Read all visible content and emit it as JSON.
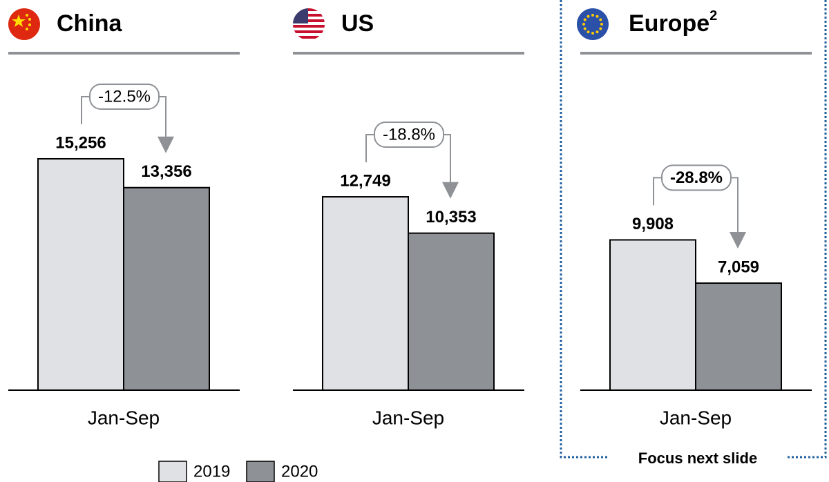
{
  "chart_data": [
    {
      "type": "bar",
      "title": "China",
      "categories": [
        "Jan-Sep"
      ],
      "series": [
        {
          "name": "2019",
          "color": "#e0e1e4",
          "values": [
            15256
          ],
          "value_labels": [
            "15,256"
          ]
        },
        {
          "name": "2020",
          "color": "#8e9196",
          "values": [
            13356
          ],
          "value_labels": [
            "13,356"
          ]
        }
      ],
      "annotation": "-12.5%"
    },
    {
      "type": "bar",
      "title": "US",
      "categories": [
        "Jan-Sep"
      ],
      "series": [
        {
          "name": "2019",
          "color": "#e0e1e4",
          "values": [
            12749
          ],
          "value_labels": [
            "12,749"
          ]
        },
        {
          "name": "2020",
          "color": "#8e9196",
          "values": [
            10353
          ],
          "value_labels": [
            "10,353"
          ]
        }
      ],
      "annotation": "-18.8%"
    },
    {
      "type": "bar",
      "title": "Europe",
      "title_note": "2",
      "categories": [
        "Jan-Sep"
      ],
      "series": [
        {
          "name": "2019",
          "color": "#e0e1e4",
          "values": [
            9908
          ],
          "value_labels": [
            "9,908"
          ]
        },
        {
          "name": "2020",
          "color": "#8e9196",
          "values": [
            7059
          ],
          "value_labels": [
            "7,059"
          ]
        }
      ],
      "annotation": "-28.8%",
      "annotation_bold": true,
      "callout": "Focus next slide"
    }
  ]
}
